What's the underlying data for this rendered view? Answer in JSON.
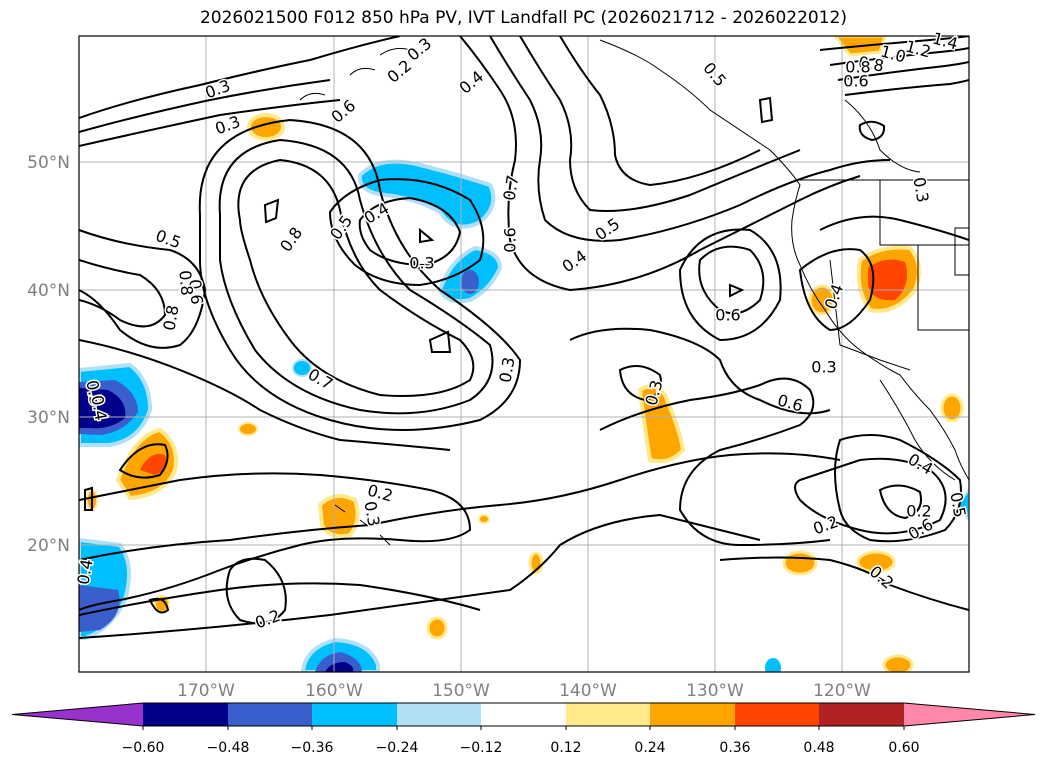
{
  "title": "2026021500 F012 850 hPa PV, IVT Landfall PC (2026021712 - 2026022012)",
  "lat_labels": [
    "50°N",
    "40°N",
    "30°N",
    "20°N"
  ],
  "lon_labels": [
    "170°W",
    "160°W",
    "150°W",
    "140°W",
    "130°W",
    "120°W"
  ],
  "contour_labels": [
    "0.3",
    "0.3",
    "0.4",
    "0.6",
    "0.2",
    "0.3",
    "0.5",
    "0.8",
    "1.0",
    "1.2",
    "1.4",
    "0.8",
    "0.6",
    "0.5",
    "0.8",
    "0.4",
    "0.5",
    "0.7",
    "0.6",
    "0.3",
    "0.5",
    "0.4",
    "0.8",
    "0.6",
    "0.8",
    "0.6",
    "0.7",
    "0.3",
    "0.3",
    "0.6",
    "0.3",
    "0.3",
    "0.4",
    "0.4",
    "0.2",
    "0.3",
    "0.2",
    "0.2",
    "0.4",
    "0.6",
    "0.5",
    "0.2",
    "0.2",
    "0.4",
    "0.3"
  ],
  "colorbar": {
    "ticks": [
      "−0.60",
      "−0.48",
      "−0.36",
      "−0.24",
      "−0.12",
      "0.12",
      "0.24",
      "0.36",
      "0.48",
      "0.60"
    ],
    "colors": [
      "#9932cc",
      "#00008b",
      "#3a5fcd",
      "#00bfff",
      "#b0e0f8",
      "#ffffff",
      "#ffe98a",
      "#ffa500",
      "#ff4500",
      "#b22222",
      "#ff88aa"
    ]
  },
  "colors": {
    "grid": "#b0b0b0",
    "axis_label": "#808080",
    "contour": "#000000"
  }
}
